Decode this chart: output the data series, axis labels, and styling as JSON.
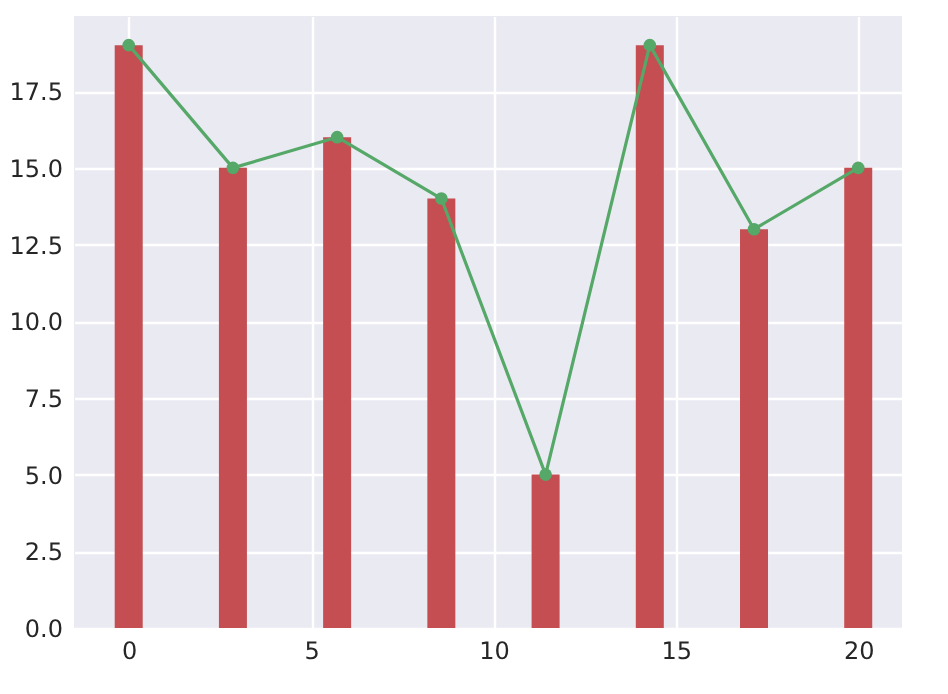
{
  "chart_data": {
    "type": "bar",
    "x": [
      0,
      2.857,
      5.714,
      8.571,
      11.429,
      14.286,
      17.143,
      20
    ],
    "series": [
      {
        "type": "bar",
        "color": "#c44e52",
        "values": [
          19,
          15,
          16,
          14,
          5,
          19,
          13,
          15
        ]
      },
      {
        "type": "line",
        "color": "#55a868",
        "marker": "circle",
        "values": [
          19,
          15,
          16,
          14,
          5,
          19,
          13,
          15
        ]
      }
    ],
    "xlim": [
      -1.5,
      21.2
    ],
    "xticks": [
      0,
      5,
      10,
      15,
      20
    ],
    "ylim": [
      0,
      19.95
    ],
    "yticks": [
      {
        "value": 0,
        "label": "0.0"
      },
      {
        "value": 2.5,
        "label": "2.5"
      },
      {
        "value": 5,
        "label": "5.0"
      },
      {
        "value": 7.5,
        "label": "7.5"
      },
      {
        "value": 10,
        "label": "10.0"
      },
      {
        "value": 12.5,
        "label": "12.5"
      },
      {
        "value": 15,
        "label": "15.0"
      },
      {
        "value": 17.5,
        "label": "17.5"
      }
    ],
    "grid": true
  }
}
